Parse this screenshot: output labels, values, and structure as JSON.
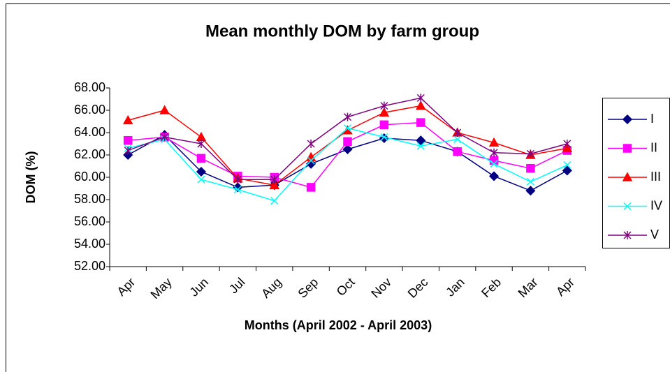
{
  "chart_data": {
    "type": "line",
    "title": "Mean monthly DOM by farm group",
    "x_label": "Months (April 2002 - April 2003)",
    "y_label": "DOM (%)",
    "categories": [
      "Apr",
      "May",
      "Jun",
      "Jul",
      "Aug",
      "Sep",
      "Oct",
      "Nov",
      "Dec",
      "Jan",
      "Feb",
      "Mar",
      "Apr"
    ],
    "ylim": [
      52,
      68
    ],
    "yticks": [
      {
        "value": 52,
        "label": "52.00"
      },
      {
        "value": 54,
        "label": "54.00"
      },
      {
        "value": 56,
        "label": "56.00"
      },
      {
        "value": 58,
        "label": "58.00"
      },
      {
        "value": 60,
        "label": "60.00"
      },
      {
        "value": 62,
        "label": "62.00"
      },
      {
        "value": 64,
        "label": "64.00"
      },
      {
        "value": 66,
        "label": "66.00"
      },
      {
        "value": 68,
        "label": "68.00"
      }
    ],
    "legend": "right",
    "series": [
      {
        "name": "I",
        "color": "#000080",
        "marker": "diamond",
        "values": [
          62.0,
          63.8,
          60.5,
          59.1,
          59.3,
          61.2,
          62.5,
          63.5,
          63.3,
          62.3,
          60.1,
          58.8,
          60.6
        ]
      },
      {
        "name": "II",
        "color": "#ff00ff",
        "marker": "square",
        "values": [
          63.3,
          63.6,
          61.7,
          60.1,
          60.0,
          59.1,
          63.2,
          64.7,
          64.9,
          62.3,
          61.5,
          60.8,
          62.4
        ]
      },
      {
        "name": "III",
        "color": "#ff0000",
        "marker": "triangle",
        "values": [
          65.1,
          66.0,
          63.6,
          59.9,
          59.3,
          61.8,
          64.2,
          65.8,
          66.4,
          64.0,
          63.1,
          62.0,
          62.6
        ]
      },
      {
        "name": "IV",
        "color": "#00ffff",
        "marker": "x",
        "values": [
          62.6,
          63.4,
          59.8,
          58.9,
          57.9,
          61.5,
          64.4,
          63.6,
          62.8,
          63.4,
          61.2,
          59.6,
          61.1
        ]
      },
      {
        "name": "V",
        "color": "#800080",
        "marker": "star",
        "values": [
          62.4,
          63.6,
          63.0,
          59.8,
          59.8,
          63.0,
          65.4,
          66.4,
          67.1,
          64.0,
          62.2,
          62.1,
          63.0
        ]
      }
    ]
  }
}
